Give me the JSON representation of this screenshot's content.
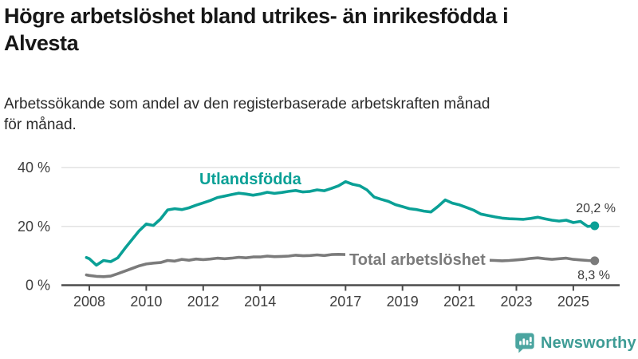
{
  "header": {
    "title": "Högre arbetslöshet bland utrikes- än inrikesfödda i\nAlvesta",
    "subtitle": "Arbetssökande som andel av den registerbaserade arbetskraften månad\nför månad."
  },
  "chart_data": {
    "type": "line",
    "title": "Högre arbetslöshet bland utrikes- än inrikesfödda i Alvesta",
    "subtitle": "Arbetssökande som andel av den registerbaserade arbetskraften månad för månad.",
    "xlabel": "",
    "ylabel": "",
    "xlim": [
      2007.9,
      2025.75
    ],
    "ylim": [
      0,
      40
    ],
    "grid": "horizontal",
    "x": [
      2007.9,
      2008.0,
      2008.25,
      2008.5,
      2008.75,
      2009.0,
      2009.25,
      2009.5,
      2009.75,
      2010.0,
      2010.25,
      2010.5,
      2010.75,
      2011.0,
      2011.25,
      2011.5,
      2011.75,
      2012.0,
      2012.25,
      2012.5,
      2012.75,
      2013.0,
      2013.25,
      2013.5,
      2013.75,
      2014.0,
      2014.25,
      2014.5,
      2014.75,
      2015.0,
      2015.25,
      2015.5,
      2015.75,
      2016.0,
      2016.25,
      2016.5,
      2016.75,
      2017.0,
      2017.25,
      2017.5,
      2017.75,
      2018.0,
      2018.25,
      2018.5,
      2018.75,
      2019.0,
      2019.25,
      2019.5,
      2019.75,
      2020.0,
      2020.25,
      2020.5,
      2020.75,
      2021.0,
      2021.25,
      2021.5,
      2021.75,
      2022.0,
      2022.25,
      2022.5,
      2022.75,
      2023.0,
      2023.25,
      2023.5,
      2023.75,
      2024.0,
      2024.25,
      2024.5,
      2024.75,
      2025.0,
      2025.25,
      2025.5,
      2025.75
    ],
    "series": [
      {
        "name": "Utlandsfödda",
        "color": "#0aa096",
        "end_value": 20.2,
        "end_label": "20,2 %",
        "values": [
          9.4,
          9.0,
          6.8,
          8.4,
          8.0,
          9.3,
          12.5,
          15.5,
          18.5,
          20.8,
          20.3,
          22.5,
          25.6,
          26.0,
          25.7,
          26.3,
          27.2,
          28.0,
          28.8,
          29.8,
          30.3,
          30.8,
          31.3,
          31.0,
          30.6,
          31.0,
          31.6,
          31.2,
          31.5,
          31.9,
          32.2,
          31.7,
          31.9,
          32.4,
          32.1,
          32.9,
          33.8,
          35.2,
          34.3,
          33.8,
          32.4,
          30.0,
          29.2,
          28.5,
          27.4,
          26.7,
          26.0,
          25.7,
          25.2,
          24.9,
          26.8,
          29.0,
          27.9,
          27.3,
          26.4,
          25.5,
          24.2,
          23.7,
          23.2,
          22.8,
          22.6,
          22.5,
          22.4,
          22.7,
          23.1,
          22.6,
          22.1,
          21.8,
          22.1,
          21.3,
          21.7,
          20.0,
          20.2
        ]
      },
      {
        "name": "Total arbetslöshet",
        "color": "#7b7b7b",
        "end_value": 8.3,
        "end_label": "8,3 %",
        "values": [
          3.5,
          3.3,
          3.0,
          2.9,
          3.1,
          3.9,
          4.8,
          5.7,
          6.6,
          7.2,
          7.5,
          7.7,
          8.4,
          8.2,
          8.8,
          8.5,
          8.9,
          8.7,
          8.9,
          9.2,
          9.0,
          9.2,
          9.5,
          9.3,
          9.6,
          9.6,
          9.9,
          9.7,
          9.8,
          9.9,
          10.2,
          10.0,
          10.1,
          10.3,
          10.1,
          10.4,
          10.5,
          10.4,
          10.2,
          10.0,
          9.7,
          9.4,
          9.1,
          8.9,
          8.8,
          8.7,
          8.6,
          8.7,
          8.8,
          9.0,
          10.3,
          10.6,
          10.1,
          9.8,
          9.4,
          9.0,
          8.7,
          8.5,
          8.4,
          8.3,
          8.4,
          8.6,
          8.8,
          9.1,
          9.3,
          9.0,
          8.8,
          9.0,
          9.2,
          8.8,
          8.6,
          8.4,
          8.3
        ]
      }
    ],
    "xticks": {
      "values": [
        2008,
        2010,
        2012,
        2014,
        2017,
        2019,
        2021,
        2023,
        2025
      ],
      "labels": [
        "2008",
        "2010",
        "2012",
        "2014",
        "2017",
        "2019",
        "2021",
        "2023",
        "2025"
      ]
    },
    "yticks": {
      "values": [
        0,
        20,
        40
      ],
      "labels": [
        "0 %",
        "20 %",
        "40 %"
      ]
    },
    "legend_position": "inline-labels"
  },
  "footer": {
    "brand": "Newsworthy"
  },
  "colors": {
    "accent_teal": "#0aa096",
    "line_gray": "#7b7b7b",
    "grid": "#e2e2e2",
    "axis": "#4c4c4c",
    "logo_teal": "#4ba5a0",
    "logo_text_teal": "#3e9c95"
  }
}
